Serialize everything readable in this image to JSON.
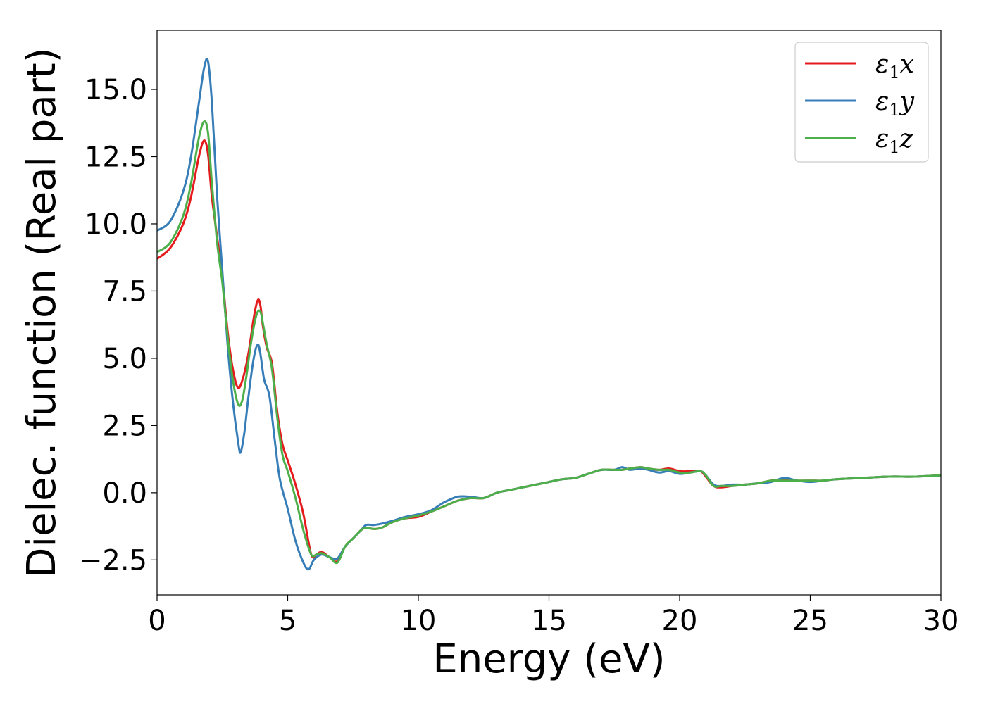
{
  "chart_data": {
    "type": "line",
    "title": "",
    "xlabel": "Energy (eV)",
    "ylabel": "Dielec. function (Real part)",
    "xlim": [
      0,
      30
    ],
    "ylim": [
      -3.8,
      17.2
    ],
    "xticks": [
      0,
      5,
      10,
      15,
      20,
      25,
      30
    ],
    "xtick_labels": [
      "0",
      "5",
      "10",
      "15",
      "20",
      "25",
      "30"
    ],
    "yticks": [
      -2.5,
      0.0,
      2.5,
      5.0,
      7.5,
      10.0,
      12.5,
      15.0
    ],
    "ytick_labels": [
      "−2.5",
      "0.0",
      "2.5",
      "5.0",
      "7.5",
      "10.0",
      "12.5",
      "15.0"
    ],
    "grid": false,
    "legend_position": "top-right",
    "series": [
      {
        "name": "x",
        "legend_base": "ε",
        "legend_sub": "1",
        "legend_suffix": "x",
        "color": "#e41a1c",
        "x": [
          0,
          0.5,
          1.0,
          1.3,
          1.6,
          1.8,
          1.95,
          2.1,
          2.3,
          2.5,
          2.7,
          2.9,
          3.1,
          3.3,
          3.5,
          3.7,
          3.85,
          3.95,
          4.05,
          4.2,
          4.4,
          4.6,
          4.8,
          5.0,
          5.3,
          5.6,
          5.9,
          6.1,
          6.3,
          6.6,
          6.9,
          7.2,
          7.5,
          7.8,
          8.0,
          8.3,
          8.6,
          9.0,
          9.5,
          10.0,
          10.5,
          11.0,
          11.5,
          12.0,
          12.5,
          13.0,
          13.5,
          14.0,
          14.5,
          15.0,
          15.5,
          16.0,
          16.5,
          17.0,
          17.5,
          17.8,
          18.1,
          18.5,
          18.8,
          19.2,
          19.6,
          20.0,
          20.4,
          20.8,
          21.0,
          21.3,
          21.6,
          22.0,
          22.5,
          23.0,
          23.5,
          24.0,
          24.5,
          25.0,
          25.5,
          26.0,
          27.0,
          28.0,
          29.0,
          30.0
        ],
        "y": [
          8.7,
          9.1,
          10.0,
          11.0,
          12.5,
          13.1,
          12.6,
          11.0,
          9.5,
          8.0,
          6.0,
          4.6,
          3.9,
          4.3,
          5.2,
          6.5,
          7.15,
          7.0,
          6.2,
          5.4,
          4.8,
          3.0,
          1.8,
          1.2,
          0.3,
          -0.8,
          -2.3,
          -2.3,
          -2.2,
          -2.4,
          -2.55,
          -2.0,
          -1.7,
          -1.4,
          -1.3,
          -1.35,
          -1.3,
          -1.1,
          -0.95,
          -0.9,
          -0.7,
          -0.5,
          -0.3,
          -0.2,
          -0.2,
          0.0,
          0.1,
          0.2,
          0.3,
          0.4,
          0.5,
          0.55,
          0.7,
          0.85,
          0.85,
          0.85,
          0.9,
          0.95,
          0.9,
          0.85,
          0.9,
          0.8,
          0.8,
          0.8,
          0.6,
          0.25,
          0.2,
          0.25,
          0.3,
          0.35,
          0.45,
          0.5,
          0.45,
          0.45,
          0.45,
          0.5,
          0.55,
          0.6,
          0.6,
          0.65
        ]
      },
      {
        "name": "y",
        "legend_base": "ε",
        "legend_sub": "1",
        "legend_suffix": "y",
        "color": "#377eb8",
        "x": [
          0,
          0.5,
          1.0,
          1.3,
          1.6,
          1.8,
          1.95,
          2.1,
          2.3,
          2.5,
          2.7,
          2.9,
          3.1,
          3.2,
          3.35,
          3.5,
          3.7,
          3.85,
          3.95,
          4.1,
          4.3,
          4.5,
          4.7,
          5.0,
          5.3,
          5.6,
          5.8,
          6.0,
          6.3,
          6.6,
          6.9,
          7.2,
          7.5,
          7.8,
          8.0,
          8.3,
          8.6,
          9.0,
          9.5,
          10.0,
          10.5,
          11.0,
          11.5,
          12.0,
          12.5,
          13.0,
          13.5,
          14.0,
          14.5,
          15.0,
          15.5,
          16.0,
          16.5,
          17.0,
          17.5,
          17.8,
          18.1,
          18.5,
          18.8,
          19.2,
          19.6,
          20.0,
          20.4,
          20.8,
          21.0,
          21.3,
          21.6,
          22.0,
          22.5,
          23.0,
          23.5,
          24.0,
          24.5,
          25.0,
          25.5,
          26.0,
          27.0,
          28.0,
          29.0,
          30.0
        ],
        "y": [
          9.75,
          10.1,
          11.2,
          12.5,
          14.5,
          15.8,
          16.05,
          14.5,
          11.0,
          8.2,
          5.5,
          3.4,
          1.9,
          1.5,
          2.3,
          3.6,
          5.0,
          5.5,
          5.2,
          4.2,
          3.6,
          2.0,
          0.5,
          -0.6,
          -1.8,
          -2.6,
          -2.85,
          -2.5,
          -2.3,
          -2.4,
          -2.45,
          -2.0,
          -1.7,
          -1.4,
          -1.2,
          -1.2,
          -1.15,
          -1.05,
          -0.9,
          -0.8,
          -0.65,
          -0.35,
          -0.15,
          -0.15,
          -0.2,
          0.0,
          0.1,
          0.2,
          0.3,
          0.4,
          0.5,
          0.55,
          0.7,
          0.85,
          0.85,
          0.95,
          0.85,
          0.9,
          0.85,
          0.75,
          0.8,
          0.7,
          0.75,
          0.8,
          0.65,
          0.3,
          0.25,
          0.3,
          0.3,
          0.35,
          0.4,
          0.55,
          0.45,
          0.4,
          0.45,
          0.5,
          0.55,
          0.6,
          0.6,
          0.65
        ]
      },
      {
        "name": "z",
        "legend_base": "ε",
        "legend_sub": "1",
        "legend_suffix": "z",
        "color": "#4daf4a",
        "x": [
          0,
          0.5,
          1.0,
          1.3,
          1.6,
          1.8,
          1.95,
          2.1,
          2.3,
          2.5,
          2.7,
          2.9,
          3.1,
          3.25,
          3.4,
          3.6,
          3.8,
          3.95,
          4.05,
          4.2,
          4.4,
          4.6,
          4.8,
          5.0,
          5.3,
          5.6,
          5.9,
          6.1,
          6.3,
          6.6,
          6.9,
          7.2,
          7.5,
          7.8,
          8.0,
          8.3,
          8.6,
          9.0,
          9.5,
          10.0,
          10.5,
          11.0,
          11.5,
          12.0,
          12.5,
          13.0,
          13.5,
          14.0,
          14.5,
          15.0,
          15.5,
          16.0,
          16.5,
          17.0,
          17.5,
          17.8,
          18.1,
          18.5,
          18.8,
          19.2,
          19.6,
          20.0,
          20.4,
          20.8,
          21.0,
          21.3,
          21.6,
          22.0,
          22.5,
          23.0,
          23.5,
          24.0,
          24.5,
          25.0,
          25.5,
          26.0,
          27.0,
          28.0,
          29.0,
          30.0
        ],
        "y": [
          8.95,
          9.3,
          10.3,
          11.5,
          13.2,
          13.8,
          13.4,
          11.5,
          9.3,
          7.8,
          5.8,
          4.2,
          3.3,
          3.4,
          4.2,
          5.6,
          6.6,
          6.75,
          6.3,
          5.5,
          4.6,
          2.8,
          1.4,
          0.8,
          -0.2,
          -1.4,
          -2.3,
          -2.3,
          -2.25,
          -2.4,
          -2.6,
          -2.0,
          -1.7,
          -1.4,
          -1.3,
          -1.35,
          -1.3,
          -1.1,
          -0.95,
          -0.85,
          -0.7,
          -0.5,
          -0.3,
          -0.2,
          -0.2,
          0.0,
          0.1,
          0.2,
          0.3,
          0.4,
          0.5,
          0.55,
          0.7,
          0.85,
          0.85,
          0.85,
          0.9,
          0.95,
          0.9,
          0.85,
          0.85,
          0.75,
          0.75,
          0.8,
          0.65,
          0.25,
          0.25,
          0.25,
          0.3,
          0.35,
          0.45,
          0.45,
          0.45,
          0.45,
          0.45,
          0.5,
          0.55,
          0.6,
          0.6,
          0.65
        ]
      }
    ]
  }
}
